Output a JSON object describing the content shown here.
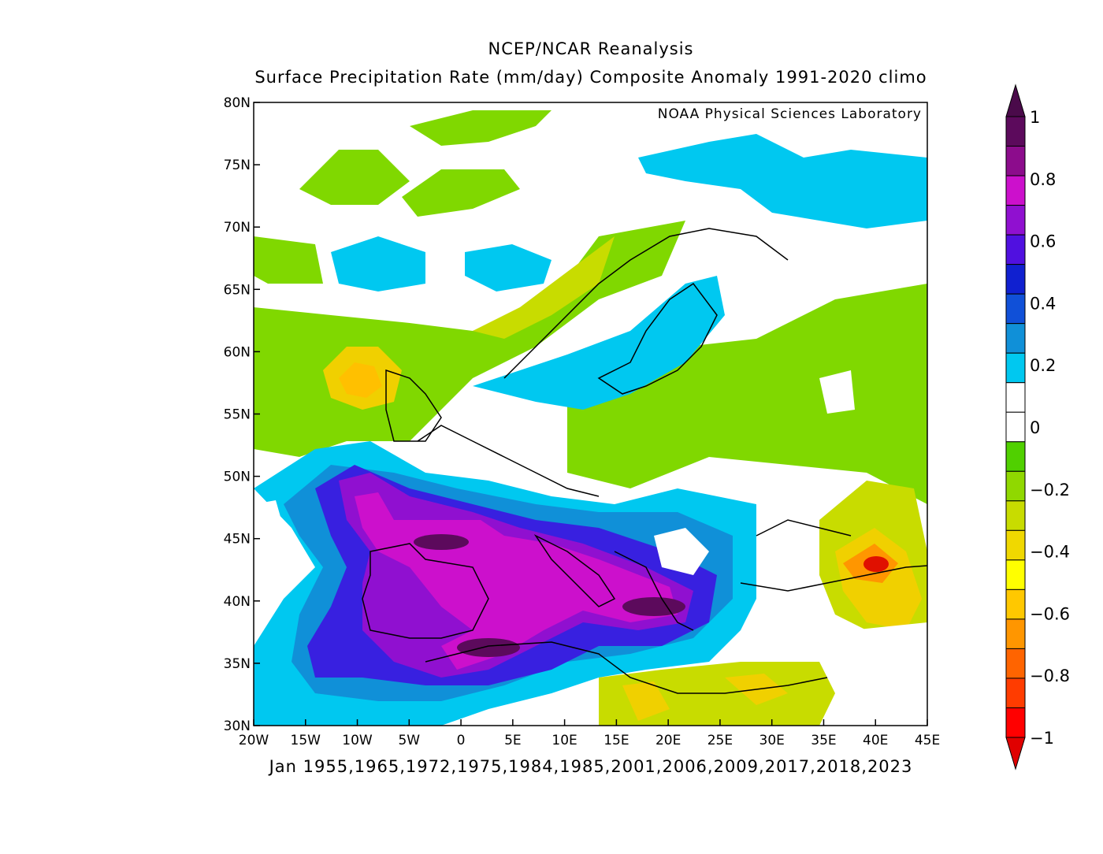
{
  "title_line1": "NCEP/NCAR Reanalysis",
  "title_line2": "Surface Precipitation Rate (mm/day) Composite Anomaly 1991-2020 climo",
  "credit": "NOAA Physical Sciences Laboratory",
  "bottom_caption": "Jan 1955,1965,1972,1975,1984,1985,2001,2006,2009,2017,2018,2023",
  "map": {
    "lon_range": [
      -20,
      45
    ],
    "lat_range": [
      30,
      80
    ],
    "lon_ticks": [
      "20W",
      "15W",
      "10W",
      "5W",
      "0",
      "5E",
      "10E",
      "15E",
      "20E",
      "25E",
      "30E",
      "35E",
      "40E",
      "45E"
    ],
    "lat_ticks": [
      "80N",
      "75N",
      "70N",
      "65N",
      "60N",
      "55N",
      "50N",
      "45N",
      "40N",
      "35N",
      "30N"
    ]
  },
  "colorbar": {
    "labels": [
      "1",
      "0.8",
      "0.6",
      "0.4",
      "0.2",
      "0",
      "−0.2",
      "−0.4",
      "−0.6",
      "−0.8",
      "−1"
    ],
    "colors": [
      "#5c0a5c",
      "#8c0c8c",
      "#cc10cc",
      "#9010d0",
      "#5010e0",
      "#1020d0",
      "#1050d8",
      "#1090d8",
      "#00c8f0",
      "#ffffff",
      "#ffffff",
      "#50d000",
      "#90d800",
      "#c8dc00",
      "#f0d800",
      "#ffff00",
      "#ffc800",
      "#ff9600",
      "#ff6400",
      "#ff3c00",
      "#ff0000"
    ],
    "top_triangle": "#4a0a4a",
    "bottom_triangle": "#e00000"
  },
  "anomaly_regions": [
    {
      "name": "iberia-med-wet",
      "level": 0.7,
      "lon": [
        -10,
        25
      ],
      "lat": [
        34,
        48
      ],
      "color": "#b010c8"
    },
    {
      "name": "france-core",
      "level": 0.9,
      "lon": [
        -3,
        3
      ],
      "lat": [
        43.5,
        46
      ],
      "color": "#6a0a6a"
    },
    {
      "name": "sw-atlantic-wet",
      "level": 0.5,
      "lon": [
        -14,
        -4
      ],
      "lat": [
        34,
        50
      ],
      "color": "#5010e0"
    },
    {
      "name": "caucasus-dry",
      "level": -0.9,
      "lon": [
        38,
        42
      ],
      "lat": [
        41,
        44
      ],
      "color": "#e01000"
    },
    {
      "name": "scotland-dry",
      "level": -0.5,
      "lon": [
        -11,
        -4
      ],
      "lat": [
        55,
        60
      ],
      "color": "#f0d000"
    },
    {
      "name": "sweden-wet",
      "level": 0.3,
      "lon": [
        12,
        24
      ],
      "lat": [
        59,
        65
      ],
      "color": "#1090d8"
    },
    {
      "name": "north-africa-dry",
      "level": -0.4,
      "lon": [
        12,
        36
      ],
      "lat": [
        30,
        34
      ],
      "color": "#d0d800"
    }
  ]
}
